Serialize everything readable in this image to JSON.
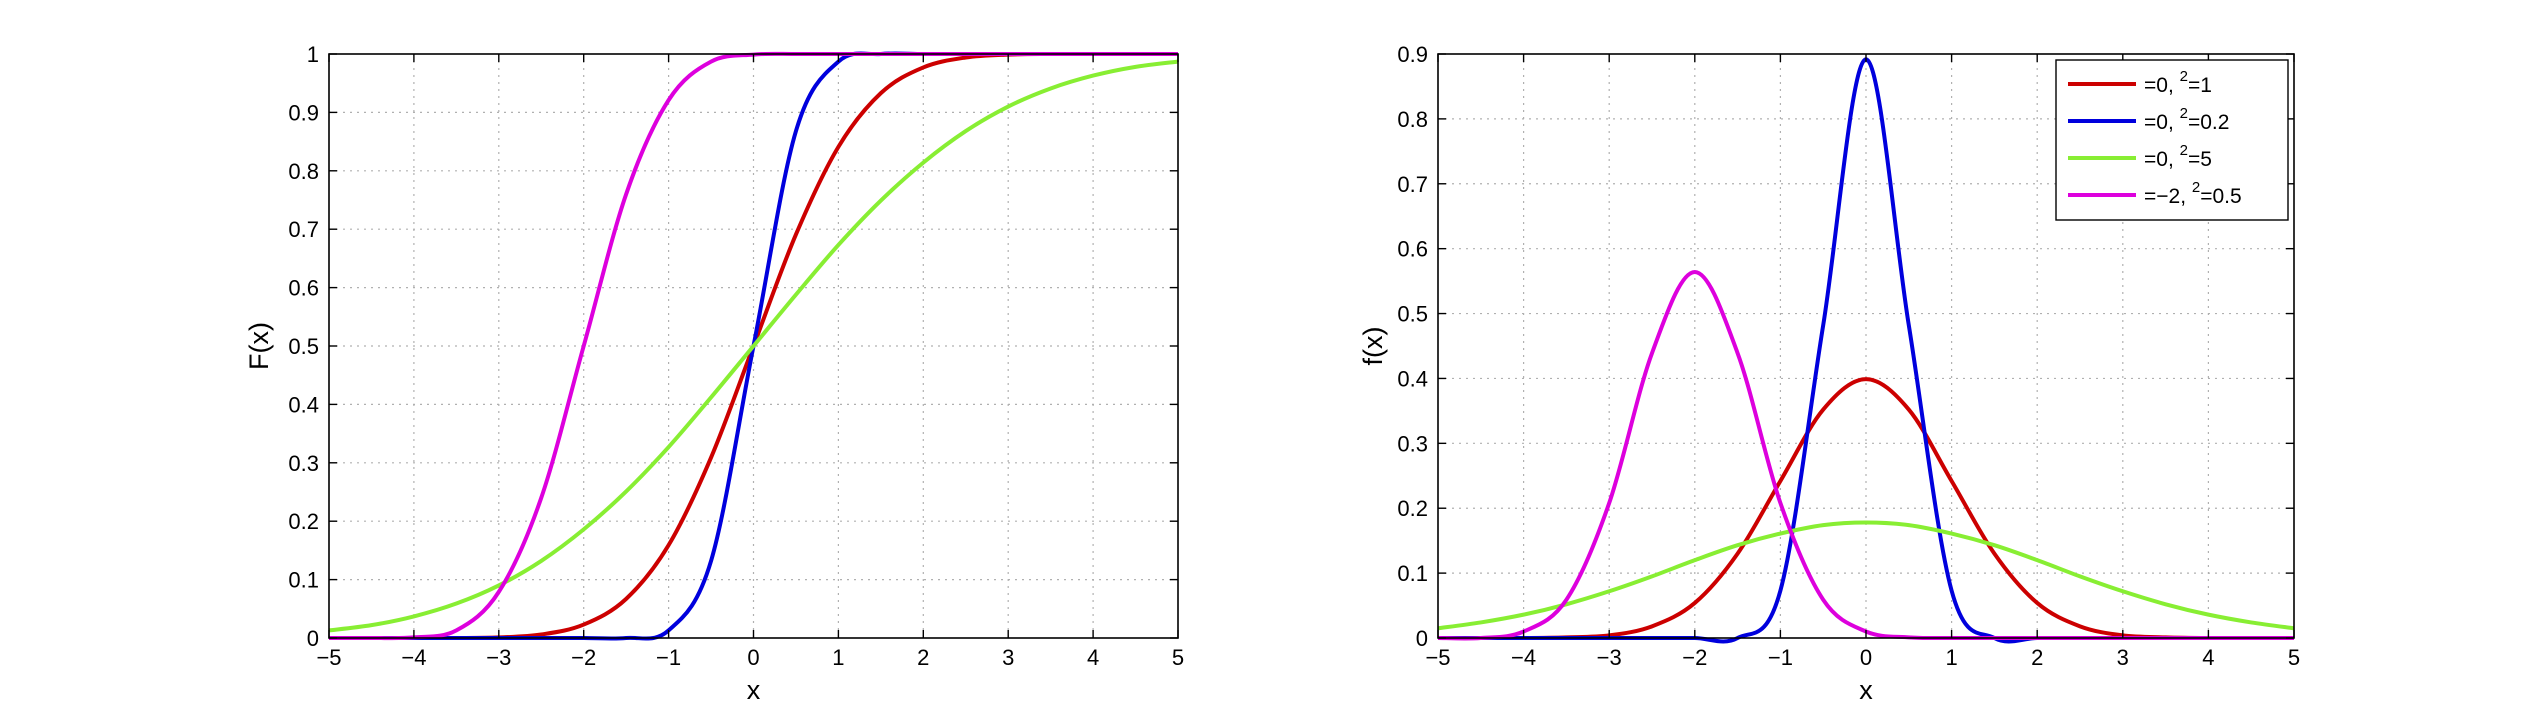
{
  "colors": {
    "red": "#cc0000",
    "blue": "#0000dd",
    "green": "#88ee33",
    "magenta": "#dd00dd",
    "grid": "#b0b0b0",
    "axis": "#000000"
  },
  "chart_data": [
    {
      "type": "line",
      "name": "cdf",
      "xlabel": "x",
      "ylabel": "F(x)",
      "xlim": [
        -5,
        5
      ],
      "ylim": [
        0,
        1
      ],
      "xticks": [
        -5,
        -4,
        -3,
        -2,
        -1,
        0,
        1,
        2,
        3,
        4,
        5
      ],
      "xtick_labels": [
        "−5",
        "−4",
        "−3",
        "−2",
        "−1",
        "0",
        "1",
        "2",
        "3",
        "4",
        "5"
      ],
      "yticks": [
        0,
        0.1,
        0.2,
        0.3,
        0.4,
        0.5,
        0.6,
        0.7,
        0.8,
        0.9,
        1
      ],
      "ytick_labels": [
        "0",
        "0.1",
        "0.2",
        "0.3",
        "0.4",
        "0.5",
        "0.6",
        "0.7",
        "0.8",
        "0.9",
        "1"
      ],
      "grid": true,
      "x": [
        -5,
        -4.5,
        -4,
        -3.5,
        -3,
        -2.5,
        -2,
        -1.5,
        -1,
        -0.5,
        0,
        0.5,
        1,
        1.5,
        2,
        2.5,
        3,
        3.5,
        4,
        4.5,
        5
      ],
      "series": [
        {
          "color": "red",
          "values": [
            0.0,
            0.0,
            0.0,
            0.0,
            0.001,
            0.006,
            0.023,
            0.067,
            0.159,
            0.309,
            0.5,
            0.691,
            0.841,
            0.933,
            0.977,
            0.994,
            0.999,
            1.0,
            1.0,
            1.0,
            1.0
          ]
        },
        {
          "color": "blue",
          "values": [
            0.0,
            0.0,
            0.0,
            0.0,
            0.0,
            0.0,
            0.0,
            0.0,
            0.013,
            0.132,
            0.5,
            0.868,
            0.987,
            1.0,
            1.0,
            1.0,
            1.0,
            1.0,
            1.0,
            1.0,
            1.0
          ]
        },
        {
          "color": "green",
          "values": [
            0.013,
            0.022,
            0.037,
            0.059,
            0.09,
            0.132,
            0.186,
            0.251,
            0.327,
            0.412,
            0.5,
            0.588,
            0.673,
            0.749,
            0.814,
            0.868,
            0.91,
            0.941,
            0.963,
            0.978,
            0.987
          ]
        },
        {
          "color": "magenta",
          "values": [
            0.0,
            0.0,
            0.001,
            0.013,
            0.079,
            0.24,
            0.5,
            0.76,
            0.921,
            0.987,
            0.999,
            1.0,
            1.0,
            1.0,
            1.0,
            1.0,
            1.0,
            1.0,
            1.0,
            1.0,
            1.0
          ]
        }
      ]
    },
    {
      "type": "line",
      "name": "pdf",
      "xlabel": "x",
      "ylabel": "f(x)",
      "xlim": [
        -5,
        5
      ],
      "ylim": [
        0,
        0.9
      ],
      "xticks": [
        -5,
        -4,
        -3,
        -2,
        -1,
        0,
        1,
        2,
        3,
        4,
        5
      ],
      "xtick_labels": [
        "−5",
        "−4",
        "−3",
        "−2",
        "−1",
        "0",
        "1",
        "2",
        "3",
        "4",
        "5"
      ],
      "yticks": [
        0,
        0.1,
        0.2,
        0.3,
        0.4,
        0.5,
        0.6,
        0.7,
        0.8,
        0.9
      ],
      "ytick_labels": [
        "0",
        "0.1",
        "0.2",
        "0.3",
        "0.4",
        "0.5",
        "0.6",
        "0.7",
        "0.8",
        "0.9"
      ],
      "grid": true,
      "legend_position": "top-right",
      "x": [
        -5,
        -4.5,
        -4,
        -3.5,
        -3,
        -2.5,
        -2,
        -1.5,
        -1,
        -0.5,
        0,
        0.5,
        1,
        1.5,
        2,
        2.5,
        3,
        3.5,
        4,
        4.5,
        5
      ],
      "series": [
        {
          "color": "red",
          "legend": {
            "main": "=0,  ",
            "sup": "2",
            "tail": "=1"
          },
          "values": [
            0.0,
            0.0,
            0.0,
            0.001,
            0.004,
            0.018,
            0.054,
            0.13,
            0.242,
            0.352,
            0.399,
            0.352,
            0.242,
            0.13,
            0.054,
            0.018,
            0.004,
            0.001,
            0.0,
            0.0,
            0.0
          ]
        },
        {
          "color": "blue",
          "legend": {
            "main": "=0,  ",
            "sup": "2",
            "tail": "=0.2"
          },
          "values": [
            0.0,
            0.0,
            0.0,
            0.0,
            0.0,
            0.0,
            0.0,
            0.0,
            0.073,
            0.482,
            0.892,
            0.482,
            0.073,
            0.0,
            0.0,
            0.0,
            0.0,
            0.0,
            0.0,
            0.0,
            0.0
          ]
        },
        {
          "color": "green",
          "legend": {
            "main": "=0,  ",
            "sup": "2",
            "tail": "=5"
          },
          "values": [
            0.015,
            0.024,
            0.036,
            0.052,
            0.072,
            0.095,
            0.12,
            0.143,
            0.161,
            0.174,
            0.178,
            0.174,
            0.161,
            0.143,
            0.12,
            0.095,
            0.072,
            0.052,
            0.036,
            0.024,
            0.015
          ]
        },
        {
          "color": "magenta",
          "legend": {
            "main": "=−2,  ",
            "sup": "2",
            "tail": "=0.5"
          },
          "values": [
            0.0,
            0.0,
            0.01,
            0.059,
            0.208,
            0.439,
            0.564,
            0.439,
            0.208,
            0.059,
            0.01,
            0.001,
            0.0,
            0.0,
            0.0,
            0.0,
            0.0,
            0.0,
            0.0,
            0.0,
            0.0
          ]
        }
      ]
    }
  ]
}
